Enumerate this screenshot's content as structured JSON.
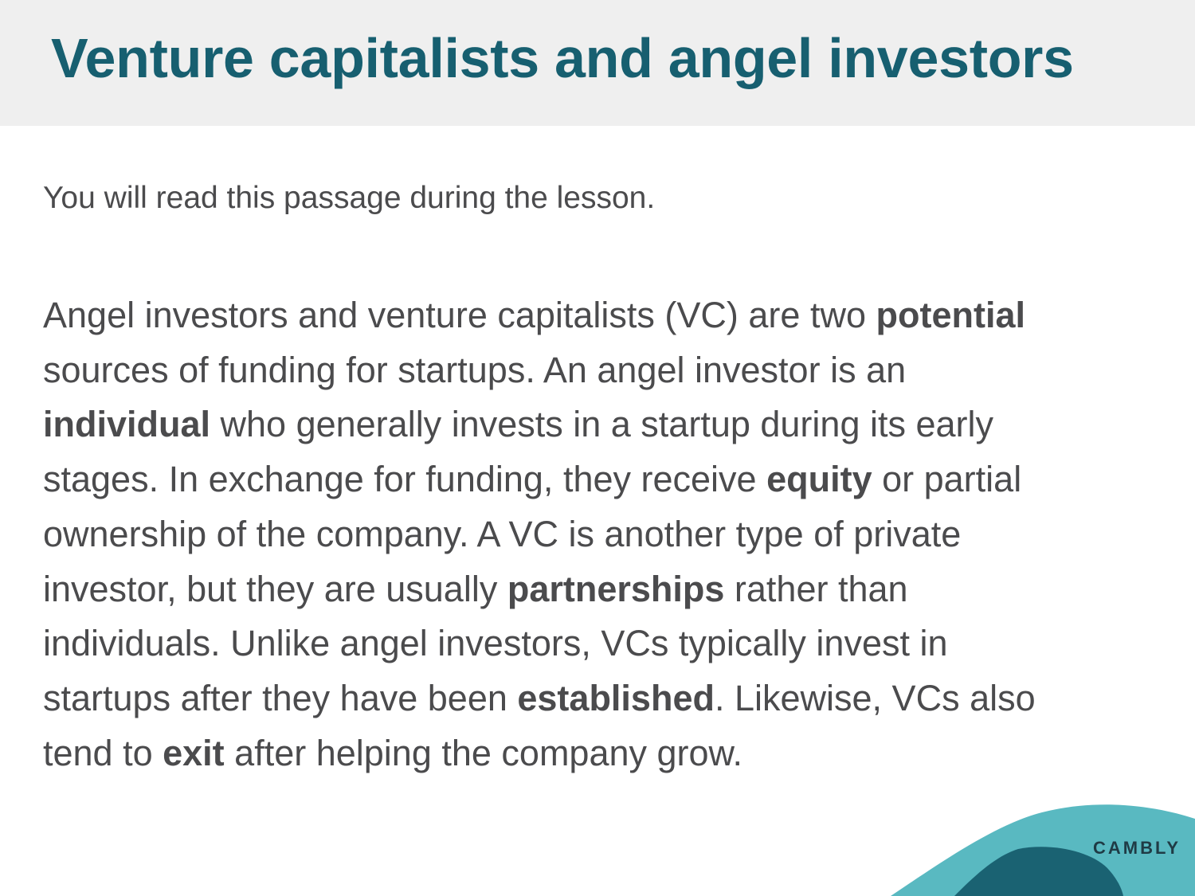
{
  "header": {
    "title": "Venture capitalists and angel investors"
  },
  "subtitle": "You will read this passage during the lesson.",
  "passage": {
    "lines": [
      [
        {
          "text": "Angel investors and venture capitalists (VC) are two "
        },
        {
          "text": "potential",
          "bold": true
        }
      ],
      [
        {
          "text": "sources of funding for startups. An angel investor is an"
        }
      ],
      [
        {
          "text": "individual",
          "bold": true
        },
        {
          "text": " who generally invests in a startup during its early"
        }
      ],
      [
        {
          "text": "stages. In exchange for funding, they receive "
        },
        {
          "text": "equity",
          "bold": true
        },
        {
          "text": " or partial"
        }
      ],
      [
        {
          "text": "ownership of the company. A VC is another type of private"
        }
      ],
      [
        {
          "text": "investor, but they are usually "
        },
        {
          "text": "partnerships",
          "bold": true
        },
        {
          "text": " rather than"
        }
      ],
      [
        {
          "text": "individuals. Unlike angel investors, VCs typically invest in"
        }
      ],
      [
        {
          "text": "startups after they have been "
        },
        {
          "text": "established",
          "bold": true
        },
        {
          "text": ". Likewise, VCs also"
        }
      ],
      [
        {
          "text": "tend to "
        },
        {
          "text": "exit",
          "bold": true
        },
        {
          "text": " after helping the company grow."
        }
      ]
    ]
  },
  "logo": {
    "text": "CAMBLY"
  },
  "colors": {
    "title": "#175f70",
    "body_text": "#4b4b4d",
    "header_band": "#efefef",
    "wave_light": "#59b9c1",
    "wave_dark": "#1a6272"
  }
}
